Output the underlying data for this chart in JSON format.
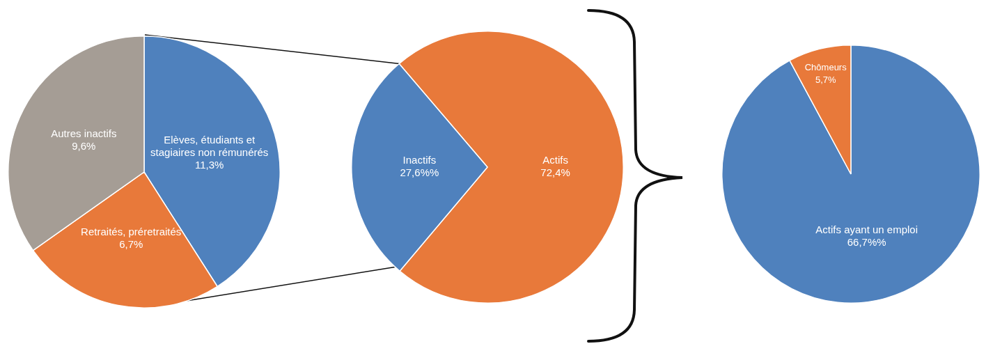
{
  "chart_data": [
    {
      "type": "pie",
      "categories": [
        "Elèves, étudiants et stagiaires non rémunérés",
        "Retraités, préretraités",
        "Autres inactifs"
      ],
      "values": [
        11.3,
        6.7,
        9.6
      ],
      "colors": [
        "#4f81bd",
        "#e8793a",
        "#a59d95"
      ],
      "value_labels": [
        "11,3%",
        "6,7%",
        "9,6%"
      ]
    },
    {
      "type": "pie",
      "categories": [
        "Actifs",
        "Inactifs"
      ],
      "values": [
        72.4,
        27.6
      ],
      "colors": [
        "#e8793a",
        "#4f81bd"
      ],
      "value_labels": [
        "72,4%",
        "27,6%%"
      ]
    },
    {
      "type": "pie",
      "categories": [
        "Actifs ayant un emploi",
        "Chômeurs"
      ],
      "values": [
        66.7,
        5.7
      ],
      "colors": [
        "#4f81bd",
        "#e8793a"
      ],
      "value_labels": [
        "66,7%%",
        "5,7%"
      ]
    }
  ]
}
